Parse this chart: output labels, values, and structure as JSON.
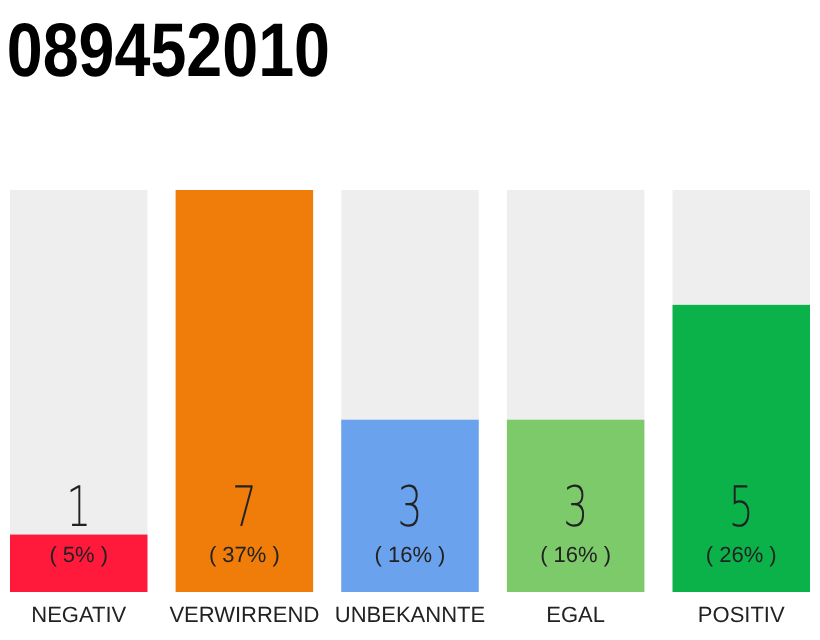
{
  "chart_data": {
    "type": "bar",
    "title": "089452010",
    "categories": [
      "NEGATIV",
      "VERWIRREND",
      "UNBEKANNTE",
      "EGAL",
      "POSITIV"
    ],
    "values": [
      1,
      7,
      3,
      3,
      5
    ],
    "colors": [
      "#ff1a3c",
      "#f07d0a",
      "#6aa2ee",
      "#7dca6a",
      "#0bb24a"
    ],
    "data_labels": true,
    "annotations": [
      "( 5% )",
      "( 37% )",
      "( 16% )",
      "( 16% )",
      "( 26% )"
    ]
  }
}
